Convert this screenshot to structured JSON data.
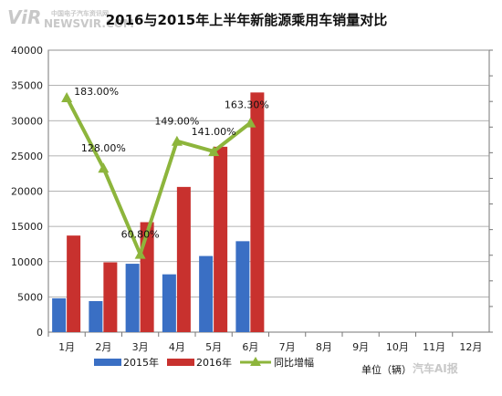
{
  "watermark": {
    "logo": "ViR",
    "text": "NEWSVIR.COM",
    "subtext": "中国电子汽车资讯网",
    "bottom_text": "汽车AI报"
  },
  "unit_label": "单位（辆）",
  "colors": {
    "bar_2015": "#3a6fc4",
    "bar_2016": "#c8312e",
    "line": "#8db53c"
  },
  "chart_data": {
    "type": "bar",
    "title": "2016与2015年上半年新能源乘用车销量对比",
    "categories": [
      "1月",
      "2月",
      "3月",
      "4月",
      "5月",
      "6月",
      "7月",
      "8月",
      "9月",
      "10月",
      "11月",
      "12月"
    ],
    "series": [
      {
        "name": "2015年",
        "type": "bar",
        "values": [
          4800,
          4400,
          9700,
          8200,
          10800,
          12900,
          null,
          null,
          null,
          null,
          null,
          null
        ]
      },
      {
        "name": "2016年",
        "type": "bar",
        "values": [
          13700,
          9900,
          15600,
          20600,
          26300,
          34000,
          null,
          null,
          null,
          null,
          null,
          null
        ]
      },
      {
        "name": "同比增幅",
        "type": "line",
        "axis": "secondary",
        "values": [
          183.0,
          128.0,
          60.8,
          149.0,
          141.0,
          163.3,
          null,
          null,
          null,
          null,
          null,
          null
        ],
        "labels": [
          "183.00%",
          "128.00%",
          "60.80%",
          "149.00%",
          "141.00%",
          "163.30%"
        ]
      }
    ],
    "ylim": [
      0,
      40000
    ],
    "yticks": [
      0,
      5000,
      10000,
      15000,
      20000,
      25000,
      30000,
      35000,
      40000
    ],
    "y2lim": [
      0,
      220
    ],
    "grid": true,
    "legend_position": "bottom"
  }
}
